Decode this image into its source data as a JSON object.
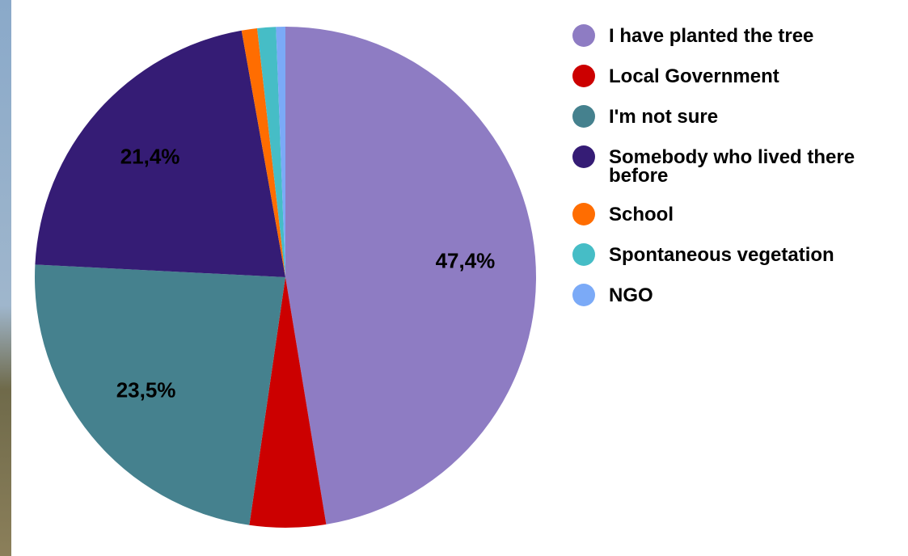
{
  "chart_data": {
    "type": "pie",
    "categories": [
      "I have planted the tree",
      "Local Government",
      "I'm not sure",
      "Somebody who lived there before",
      "School",
      "Spontaneous vegetation",
      "NGO"
    ],
    "values": [
      47.4,
      4.9,
      23.5,
      21.4,
      1.0,
      1.2,
      0.6
    ],
    "value_labels": [
      "47,4%",
      null,
      "23,5%",
      "21,4%",
      null,
      null,
      null
    ],
    "colors": [
      "#8e7cc3",
      "#cc0000",
      "#45818e",
      "#351c75",
      "#ff6d01",
      "#46bdc6",
      "#7baaf7"
    ]
  }
}
